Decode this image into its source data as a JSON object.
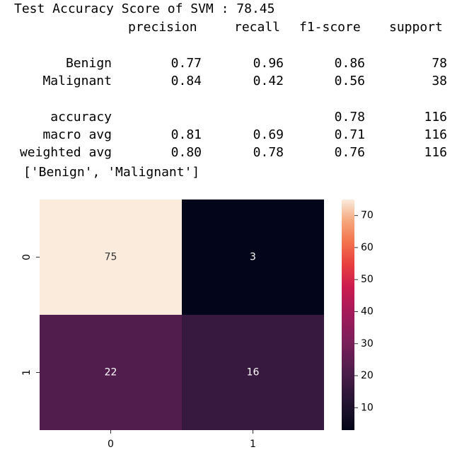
{
  "report": {
    "title": "Test Accuracy Score of SVM : 78.45",
    "headers": [
      "precision",
      "recall",
      "f1-score",
      "support"
    ],
    "rows": [
      {
        "label": "Benign",
        "precision": "0.77",
        "recall": "0.96",
        "f1": "0.86",
        "support": "78"
      },
      {
        "label": "Malignant",
        "precision": "0.84",
        "recall": "0.42",
        "f1": "0.56",
        "support": "38"
      }
    ],
    "summary": [
      {
        "label": "accuracy",
        "precision": "",
        "recall": "",
        "f1": "0.78",
        "support": "116"
      },
      {
        "label": "macro avg",
        "precision": "0.81",
        "recall": "0.69",
        "f1": "0.71",
        "support": "116"
      },
      {
        "label": "weighted avg",
        "precision": "0.80",
        "recall": "0.78",
        "f1": "0.76",
        "support": "116"
      }
    ],
    "class_list": "['Benign', 'Malignant']"
  },
  "chart_data": {
    "type": "heatmap",
    "x_categories": [
      "0",
      "1"
    ],
    "y_categories": [
      "0",
      "1"
    ],
    "values": [
      [
        75,
        3
      ],
      [
        22,
        16
      ]
    ],
    "colorbar": {
      "min": 3,
      "max": 75,
      "ticks": [
        10,
        20,
        30,
        40,
        50,
        60,
        70
      ]
    },
    "colormap": "rocket"
  }
}
